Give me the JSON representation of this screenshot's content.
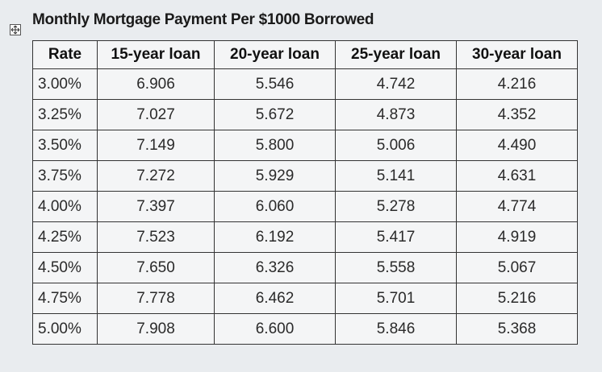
{
  "header": {
    "title": "Monthly Mortgage Payment Per $1000 Borrowed"
  },
  "table": {
    "columns": [
      "Rate",
      "15-year loan",
      "20-year loan",
      "25-year loan",
      "30-year loan"
    ],
    "rows": [
      [
        "3.00%",
        "6.906",
        "5.546",
        "4.742",
        "4.216"
      ],
      [
        "3.25%",
        "7.027",
        "5.672",
        "4.873",
        "4.352"
      ],
      [
        "3.50%",
        "7.149",
        "5.800",
        "5.006",
        "4.490"
      ],
      [
        "3.75%",
        "7.272",
        "5.929",
        "5.141",
        "4.631"
      ],
      [
        "4.00%",
        "7.397",
        "6.060",
        "5.278",
        "4.774"
      ],
      [
        "4.25%",
        "7.523",
        "6.192",
        "5.417",
        "4.919"
      ],
      [
        "4.50%",
        "7.650",
        "6.326",
        "5.558",
        "5.067"
      ],
      [
        "4.75%",
        "7.778",
        "6.462",
        "5.701",
        "5.216"
      ],
      [
        "5.00%",
        "7.908",
        "6.600",
        "5.846",
        "5.368"
      ]
    ]
  }
}
